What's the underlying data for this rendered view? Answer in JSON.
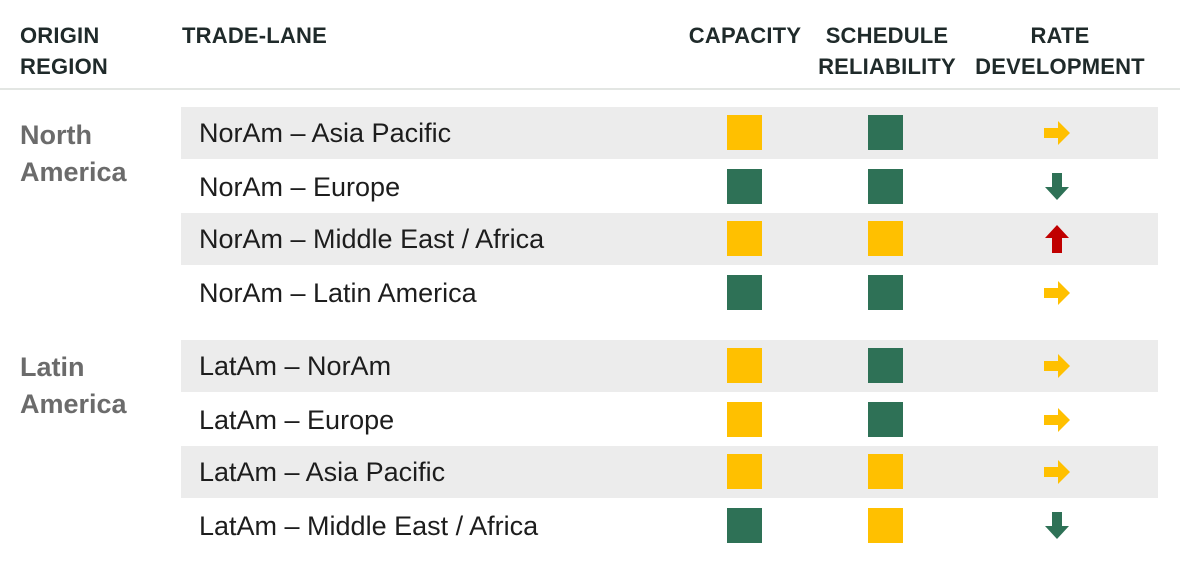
{
  "headers": {
    "origin": [
      "ORIGIN",
      "REGION"
    ],
    "lane": "TRADE-LANE",
    "capacity": "CAPACITY",
    "schedule": [
      "SCHEDULE",
      "RELIABILITY"
    ],
    "rate": [
      "RATE",
      "DEVELOPMENT"
    ]
  },
  "colors": {
    "yellow": "#ffc000",
    "green": "#2e7156",
    "red": "#c00000",
    "shade": "#ececec"
  },
  "regions": [
    {
      "name": [
        "North",
        "America"
      ],
      "lanes": [
        {
          "label": "NorAm – Asia Pacific",
          "capacity": "yellow",
          "schedule": "green",
          "rate": "right"
        },
        {
          "label": "NorAm – Europe",
          "capacity": "green",
          "schedule": "green",
          "rate": "down"
        },
        {
          "label": "NorAm – Middle East / Africa",
          "capacity": "yellow",
          "schedule": "yellow",
          "rate": "up"
        },
        {
          "label": "NorAm – Latin America",
          "capacity": "green",
          "schedule": "green",
          "rate": "right"
        }
      ]
    },
    {
      "name": [
        "Latin",
        "America"
      ],
      "lanes": [
        {
          "label": "LatAm – NorAm",
          "capacity": "yellow",
          "schedule": "green",
          "rate": "right"
        },
        {
          "label": "LatAm – Europe",
          "capacity": "yellow",
          "schedule": "green",
          "rate": "right"
        },
        {
          "label": "LatAm – Asia Pacific",
          "capacity": "yellow",
          "schedule": "yellow",
          "rate": "right"
        },
        {
          "label": "LatAm – Middle East / Africa",
          "capacity": "green",
          "schedule": "yellow",
          "rate": "down"
        }
      ]
    }
  ]
}
